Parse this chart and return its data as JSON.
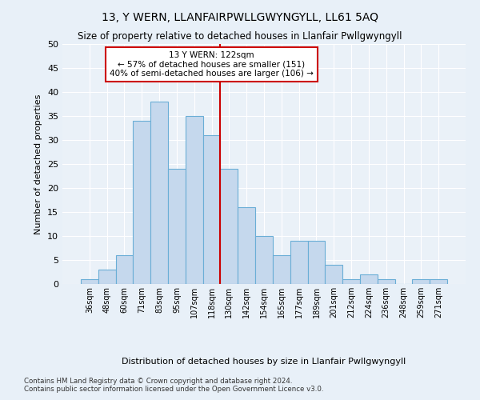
{
  "title": "13, Y WERN, LLANFAIRPWLLGWYNGYLL, LL61 5AQ",
  "subtitle": "Size of property relative to detached houses in Llanfair Pwllgwyngyll",
  "xlabel": "Distribution of detached houses by size in Llanfair Pwllgwyngyll",
  "ylabel": "Number of detached properties",
  "bin_labels": [
    "36sqm",
    "48sqm",
    "60sqm",
    "71sqm",
    "83sqm",
    "95sqm",
    "107sqm",
    "118sqm",
    "130sqm",
    "142sqm",
    "154sqm",
    "165sqm",
    "177sqm",
    "189sqm",
    "201sqm",
    "212sqm",
    "224sqm",
    "236sqm",
    "248sqm",
    "259sqm",
    "271sqm"
  ],
  "bar_heights": [
    1,
    3,
    6,
    34,
    38,
    24,
    35,
    31,
    24,
    16,
    10,
    6,
    9,
    9,
    4,
    1,
    2,
    1,
    0,
    1,
    1
  ],
  "bar_color": "#c5d8ed",
  "bar_edge_color": "#6aaed6",
  "vline_x_index": 7.5,
  "vline_color": "#cc0000",
  "annotation_text": "13 Y WERN: 122sqm\n← 57% of detached houses are smaller (151)\n40% of semi-detached houses are larger (106) →",
  "annotation_box_color": "#ffffff",
  "annotation_box_edge": "#cc0000",
  "ylim": [
    0,
    50
  ],
  "yticks": [
    0,
    5,
    10,
    15,
    20,
    25,
    30,
    35,
    40,
    45,
    50
  ],
  "bg_color": "#e8f0f8",
  "plot_bg_color": "#eaf1f8",
  "grid_color": "#ffffff",
  "footer": "Contains HM Land Registry data © Crown copyright and database right 2024.\nContains public sector information licensed under the Open Government Licence v3.0."
}
